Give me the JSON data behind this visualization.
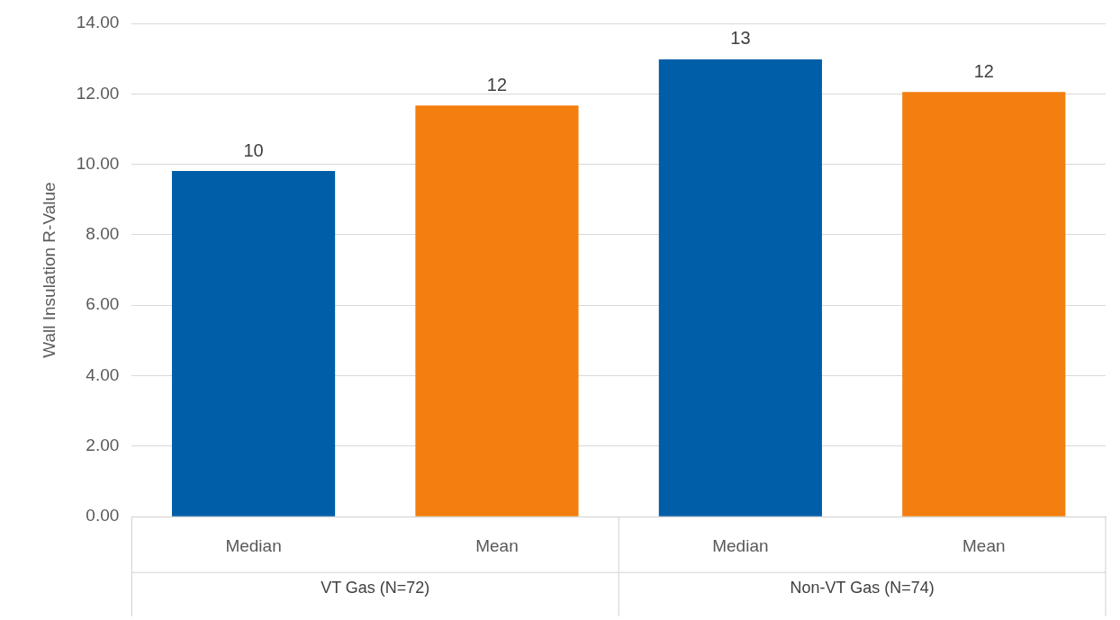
{
  "chart_data": {
    "type": "bar",
    "ylabel": "Wall Insulation R-Value",
    "categories": [
      "Median",
      "Mean",
      "Median",
      "Mean"
    ],
    "values": [
      9.81,
      11.67,
      12.98,
      12.05
    ],
    "colors": [
      "#005ea8",
      "#f27f0f",
      "#005ea8",
      "#f27f0f"
    ],
    "value_labels": [
      "10",
      "12",
      "13",
      "12"
    ],
    "annotations": [
      "VT Gas (N=72)",
      "Non-VT Gas (N=74)"
    ],
    "ylim": [
      0,
      14
    ],
    "yticks": [
      {
        "value": 0,
        "label": "0.00"
      },
      {
        "value": 2,
        "label": "2.00"
      },
      {
        "value": 4,
        "label": "4.00"
      },
      {
        "value": 6,
        "label": "6.00"
      },
      {
        "value": 8,
        "label": "8.00"
      },
      {
        "value": 10,
        "label": "10.00"
      },
      {
        "value": 12,
        "label": "12.00"
      },
      {
        "value": 14,
        "label": "14.00"
      }
    ],
    "grid": "y",
    "legend": false
  }
}
